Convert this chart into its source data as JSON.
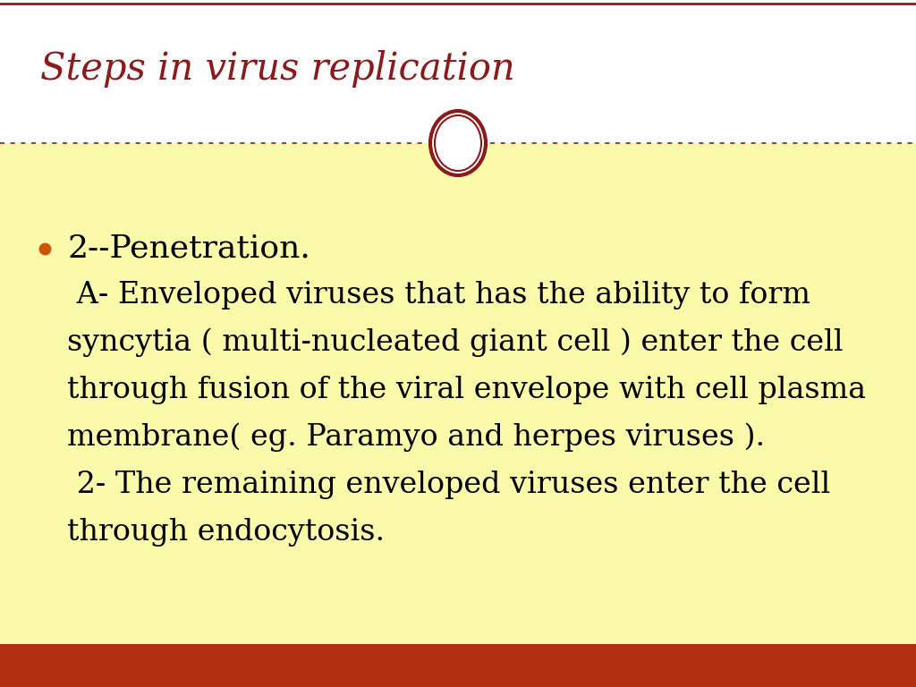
{
  "title": "Steps in virus replication",
  "title_color": "#8B1A1A",
  "title_fontsize": 30,
  "background_color": "#FFFFFF",
  "content_bg_color": "#FAFAAA",
  "bottom_bar_color": "#B03010",
  "divider_color": "#8B1A1A",
  "bullet_color": "#CC5500",
  "bullet_text": "2--Penetration.",
  "bullet_fontsize": 26,
  "content_fontsize": 24,
  "text_color": "#000000",
  "line1": " A- Enveloped viruses that has the ability to form",
  "line2": "syncytia ( multi-nucleated giant cell ) enter the cell",
  "line3": "through fusion of the viral envelope with cell plasma",
  "line4": "membrane( eg. Paramyo and herpes viruses ).",
  "line5": " 2- The remaining enveloped viruses enter the cell",
  "line6": "through endocytosis.",
  "top_border_color": "#8B1A1A",
  "circle_color": "#8B1A1A"
}
